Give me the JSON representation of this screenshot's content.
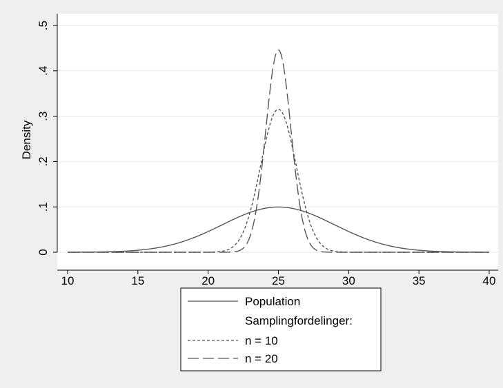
{
  "chart_data": {
    "type": "line",
    "title": "",
    "xlabel": "",
    "ylabel": "Density",
    "xlim": [
      10,
      40
    ],
    "ylim": [
      0,
      0.5
    ],
    "x_ticks": [
      10,
      15,
      20,
      25,
      30,
      35,
      40
    ],
    "x_tick_labels": [
      "10",
      "15",
      "20",
      "25",
      "30",
      "35",
      "40"
    ],
    "y_ticks": [
      0,
      0.1,
      0.2,
      0.3,
      0.4,
      0.5
    ],
    "y_tick_labels": [
      "0",
      ".1",
      ".2",
      ".3",
      ".4",
      ".5"
    ],
    "grid": "horizontal",
    "legend_position": "bottom",
    "legend_heading": "Samplingfordelinger:",
    "series": [
      {
        "name": "Population",
        "distribution": "normal",
        "mean": 25,
        "sd": 4,
        "peak_density": 0.0997,
        "color": "#555555",
        "line_style": "solid"
      },
      {
        "name": "n = 10",
        "distribution": "normal",
        "mean": 25,
        "sd": 1.265,
        "peak_density": 0.315,
        "color": "#555555",
        "line_style": "short-dash"
      },
      {
        "name": "n = 20",
        "distribution": "normal",
        "mean": 25,
        "sd": 0.894,
        "peak_density": 0.446,
        "color": "#555555",
        "line_style": "long-dash"
      }
    ]
  },
  "colors": {
    "outer_background": "#efefef",
    "plot_background": "#ffffff",
    "gridline": "#e6e6e6",
    "axis": "#000000",
    "series": "#555555"
  }
}
